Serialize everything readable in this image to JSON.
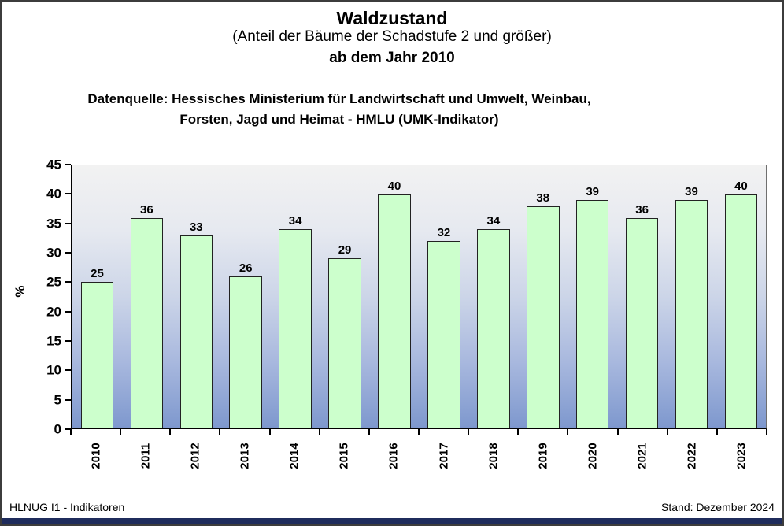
{
  "header": {
    "title": "Waldzustand",
    "subtitle": "(Anteil der Bäume der Schadstufe 2 und größer)",
    "subtitle2": "ab dem Jahr 2010",
    "source_line1": "Datenquelle: Hessisches Ministerium für Landwirtschaft und Umwelt, Weinbau,",
    "source_line2": "Forsten, Jagd und Heimat - HMLU (UMK-Indikator)"
  },
  "chart_data": {
    "type": "bar",
    "title": "Waldzustand (Anteil der Bäume der Schadstufe 2 und größer) ab dem Jahr 2010",
    "categories": [
      "2010",
      "2011",
      "2012",
      "2013",
      "2014",
      "2015",
      "2016",
      "2017",
      "2018",
      "2019",
      "2020",
      "2021",
      "2022",
      "2023"
    ],
    "values": [
      25,
      36,
      33,
      26,
      34,
      29,
      40,
      32,
      34,
      38,
      39,
      36,
      39,
      40
    ],
    "xlabel": "",
    "ylabel": "%",
    "ylim": [
      0,
      45
    ],
    "ytick_step": 5,
    "grid": false,
    "legend": "none",
    "data_labels": true,
    "colors": {
      "bar_fill": "#ccffcc",
      "bar_border": "#222222",
      "plot_bg_gradient_top": "#f2f2f2",
      "plot_bg_gradient_mid": "#ccd5e8",
      "plot_bg_gradient_bottom": "#7e98ce"
    }
  },
  "footer": {
    "left": "HLNUG I1 - Indikatoren",
    "right": "Stand: Dezember 2024",
    "bar_color": "#1f2c5c"
  }
}
